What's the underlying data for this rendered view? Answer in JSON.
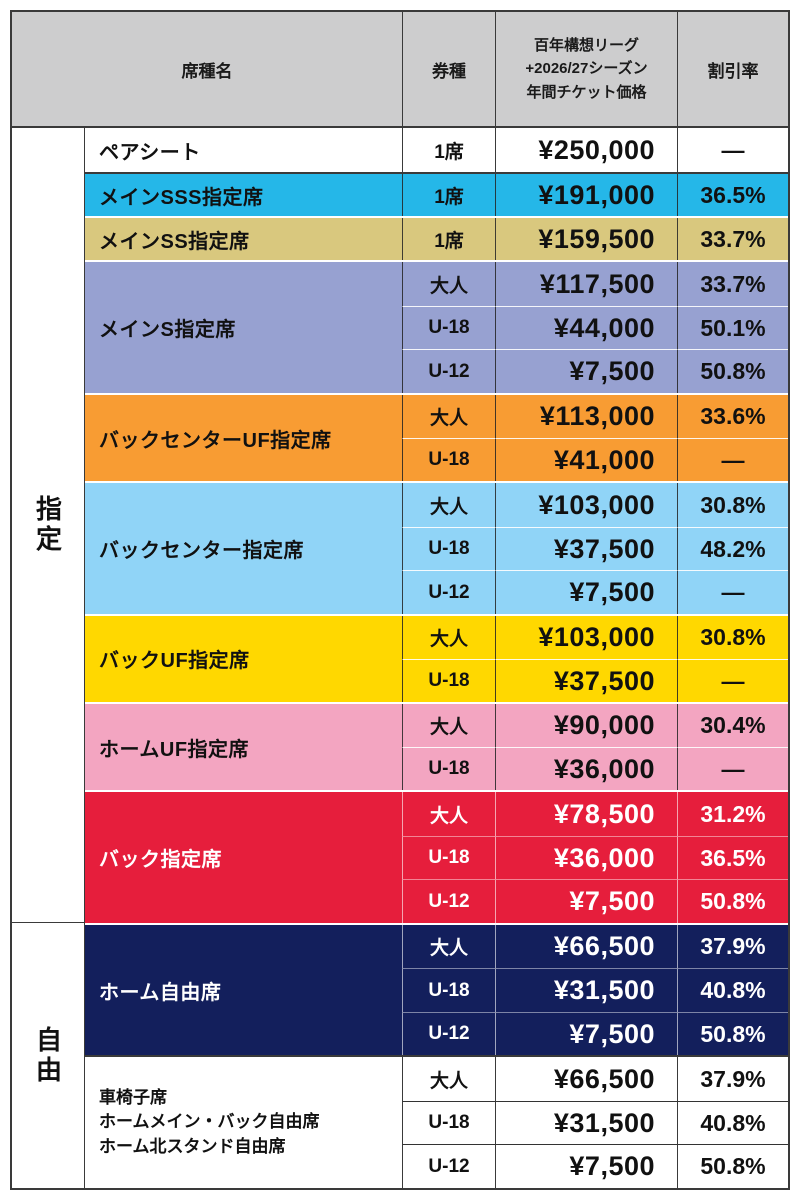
{
  "header": {
    "col_seat": "席種名",
    "col_type": "券種",
    "col_price": "百年構想リーグ\n+2026/27シーズン\n年間チケット価格",
    "col_discount": "割引率"
  },
  "side_labels": [
    {
      "label": "指定",
      "rows": 18
    },
    {
      "label": "自由",
      "rows": 6
    }
  ],
  "colors": {
    "outer_border": "#3a3a3a",
    "header_bg": "#cdcdce",
    "text_dark": "#111111",
    "text_light": "#ffffff"
  },
  "sections": [
    {
      "name": "ペアシート",
      "bg": "#ffffff",
      "dark": false,
      "rows": [
        {
          "type": "1席",
          "price": "¥250,000",
          "discount": "—"
        }
      ]
    },
    {
      "name": "メインSSS指定席",
      "bg": "#25b7e8",
      "dark": false,
      "rows": [
        {
          "type": "1席",
          "price": "¥191,000",
          "discount": "36.5%"
        }
      ]
    },
    {
      "name": "メインSS指定席",
      "bg": "#d9c87e",
      "dark": false,
      "rows": [
        {
          "type": "1席",
          "price": "¥159,500",
          "discount": "33.7%"
        }
      ]
    },
    {
      "name": "メインS指定席",
      "bg": "#97a1d1",
      "dark": false,
      "rows": [
        {
          "type": "大人",
          "price": "¥117,500",
          "discount": "33.7%"
        },
        {
          "type": "U-18",
          "price": "¥44,000",
          "discount": "50.1%"
        },
        {
          "type": "U-12",
          "price": "¥7,500",
          "discount": "50.8%"
        }
      ]
    },
    {
      "name": "バックセンターUF指定席",
      "bg": "#f89c33",
      "dark": false,
      "rows": [
        {
          "type": "大人",
          "price": "¥113,000",
          "discount": "33.6%"
        },
        {
          "type": "U-18",
          "price": "¥41,000",
          "discount": "—"
        }
      ]
    },
    {
      "name": "バックセンター指定席",
      "bg": "#90d4f7",
      "dark": false,
      "rows": [
        {
          "type": "大人",
          "price": "¥103,000",
          "discount": "30.8%"
        },
        {
          "type": "U-18",
          "price": "¥37,500",
          "discount": "48.2%"
        },
        {
          "type": "U-12",
          "price": "¥7,500",
          "discount": "—"
        }
      ]
    },
    {
      "name": "バックUF指定席",
      "bg": "#ffd800",
      "dark": false,
      "rows": [
        {
          "type": "大人",
          "price": "¥103,000",
          "discount": "30.8%"
        },
        {
          "type": "U-18",
          "price": "¥37,500",
          "discount": "—"
        }
      ]
    },
    {
      "name": "ホームUF指定席",
      "bg": "#f3a5c1",
      "dark": false,
      "rows": [
        {
          "type": "大人",
          "price": "¥90,000",
          "discount": "30.4%"
        },
        {
          "type": "U-18",
          "price": "¥36,000",
          "discount": "—"
        }
      ]
    },
    {
      "name": "バック指定席",
      "bg": "#e61e3c",
      "dark": true,
      "rows": [
        {
          "type": "大人",
          "price": "¥78,500",
          "discount": "31.2%"
        },
        {
          "type": "U-18",
          "price": "¥36,000",
          "discount": "36.5%"
        },
        {
          "type": "U-12",
          "price": "¥7,500",
          "discount": "50.8%"
        }
      ]
    },
    {
      "name": "ホーム自由席",
      "bg": "#131f5c",
      "dark": true,
      "rows": [
        {
          "type": "大人",
          "price": "¥66,500",
          "discount": "37.9%"
        },
        {
          "type": "U-18",
          "price": "¥31,500",
          "discount": "40.8%"
        },
        {
          "type": "U-12",
          "price": "¥7,500",
          "discount": "50.8%"
        }
      ]
    },
    {
      "name": "車椅子席\nホームメイン・バック自由席\nホーム北スタンド自由席",
      "bg": "#ffffff",
      "dark": false,
      "rows": [
        {
          "type": "大人",
          "price": "¥66,500",
          "discount": "37.9%"
        },
        {
          "type": "U-18",
          "price": "¥31,500",
          "discount": "40.8%"
        },
        {
          "type": "U-12",
          "price": "¥7,500",
          "discount": "50.8%"
        }
      ]
    }
  ]
}
